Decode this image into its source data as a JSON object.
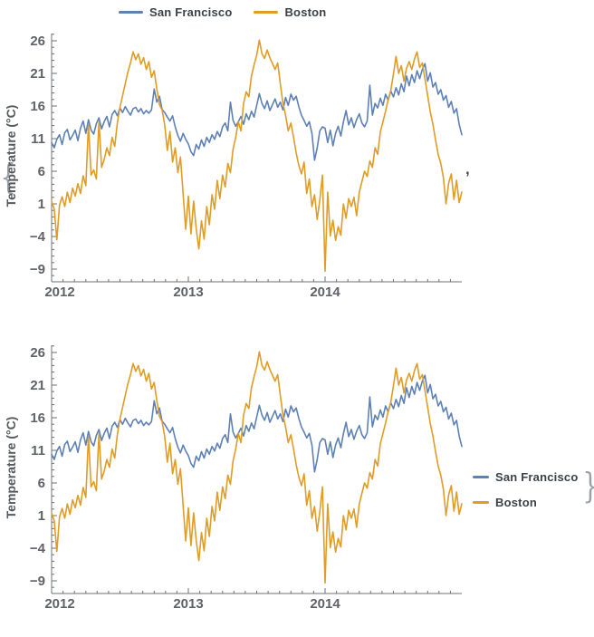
{
  "decorators": {
    "open_brace": "{",
    "separator": ",",
    "close_brace": "}"
  },
  "colors": {
    "san_francisco": "#5e81b5",
    "boston": "#e09c24",
    "axis": "#6e7174",
    "tick_text": "#5f6267",
    "legend_text": "#3b4147"
  },
  "chart_data": [
    {
      "type": "line",
      "legend_position": "top",
      "ylabel": "Temperature (°C)",
      "x_tick_labels": [
        "2012",
        "2013",
        "2014"
      ],
      "y_tick_values": [
        26,
        21,
        16,
        11,
        6,
        1,
        -4,
        -9
      ],
      "y_tick_labels": [
        "26",
        "21",
        "16",
        "11",
        "6",
        "1",
        "−4",
        "−9"
      ],
      "x_range": [
        "2012-01",
        "2014-12"
      ],
      "y_axis_range": [
        -10.9,
        27.1
      ],
      "x_unit": "week",
      "grid": false,
      "series": [
        {
          "name": "San Francisco",
          "color": "#5e81b5",
          "values": [
            10.4,
            9.6,
            10.9,
            11.6,
            10.1,
            11.9,
            12.4,
            10.8,
            11.5,
            12.3,
            10.7,
            12.6,
            13.7,
            11.8,
            13.9,
            12.3,
            11.7,
            13.3,
            14.2,
            12.5,
            13.6,
            14.4,
            12.8,
            14.7,
            15.3,
            14.5,
            15.7,
            15.0,
            15.9,
            15.2,
            14.6,
            15.6,
            15.8,
            15.1,
            15.6,
            14.8,
            15.3,
            14.9,
            15.4,
            18.6,
            16.6,
            17.5,
            15.5,
            15.0,
            14.3,
            13.7,
            14.5,
            12.8,
            11.5,
            10.6,
            11.8,
            10.9,
            10.2,
            9.0,
            8.4,
            10.1,
            9.4,
            10.8,
            9.8,
            11.2,
            10.4,
            11.6,
            10.9,
            12.1,
            11.3,
            12.8,
            13.4,
            12.2,
            16.6,
            13.8,
            12.9,
            13.6,
            14.4,
            13.2,
            14.8,
            13.9,
            15.2,
            14.3,
            16.1,
            17.9,
            16.4,
            15.6,
            16.8,
            15.3,
            16.2,
            17.1,
            15.8,
            16.6,
            15.4,
            17.3,
            16.1,
            17.8,
            16.9,
            17.5,
            15.9,
            14.6,
            13.8,
            12.9,
            13.6,
            11.8,
            7.7,
            9.6,
            12.2,
            12.8,
            12.6,
            10.4,
            12.3,
            9.9,
            11.8,
            12.9,
            11.4,
            13.6,
            15.3,
            13.1,
            14.2,
            12.7,
            13.9,
            14.8,
            13.4,
            12.8,
            13.7,
            19.2,
            14.6,
            16.4,
            15.7,
            17.2,
            16.1,
            17.8,
            16.9,
            18.3,
            17.4,
            18.8,
            17.7,
            19.4,
            18.2,
            20.6,
            19.1,
            20.8,
            19.6,
            21.4,
            20.2,
            21.6,
            22.5,
            19.8,
            21.1,
            18.9,
            19.6,
            17.8,
            18.5,
            16.9,
            17.6,
            15.8,
            16.7,
            14.9,
            15.6,
            13.2,
            11.6
          ]
        },
        {
          "name": "Boston",
          "color": "#e09c24",
          "values": [
            1.4,
            0.2,
            -4.5,
            0.8,
            2.1,
            0.6,
            2.8,
            1.2,
            3.4,
            2.2,
            4.1,
            2.6,
            5.3,
            3.8,
            13.2,
            5.4,
            6.2,
            4.8,
            13.6,
            6.6,
            7.8,
            9.6,
            8.4,
            11.2,
            9.8,
            13.4,
            15.8,
            17.6,
            19.4,
            21.2,
            22.6,
            24.3,
            23.1,
            24.0,
            22.4,
            23.4,
            21.6,
            22.8,
            20.4,
            21.4,
            18.6,
            16.2,
            15.4,
            13.1,
            9.2,
            12.1,
            7.4,
            9.6,
            5.8,
            8.2,
            2.6,
            -2.9,
            2.2,
            -3.6,
            1.4,
            -2.8,
            -5.9,
            -1.6,
            -4.4,
            0.6,
            -2.2,
            2.4,
            0.2,
            4.6,
            1.8,
            5.4,
            3.6,
            7.2,
            5.8,
            9.4,
            11.2,
            13.6,
            12.2,
            16.4,
            18.2,
            17.4,
            20.6,
            22.3,
            23.8,
            26.1,
            24.0,
            23.3,
            24.6,
            23.4,
            22.5,
            21.6,
            22.6,
            19.4,
            16.4,
            14.6,
            12.2,
            13.4,
            11.2,
            8.8,
            6.9,
            5.6,
            7.4,
            2.6,
            4.8,
            0.6,
            2.4,
            -1.4,
            1.6,
            5.4,
            -9.3,
            2.8,
            -3.9,
            -1.5,
            -4.6,
            -2.5,
            -3.8,
            1.0,
            -1.2,
            1.8,
            0.6,
            2.0,
            -0.8,
            2.8,
            4.4,
            6.0,
            5.2,
            7.6,
            6.6,
            9.6,
            8.6,
            12.0,
            13.6,
            15.2,
            17.0,
            18.4,
            20.9,
            23.6,
            21.0,
            22.2,
            19.8,
            21.8,
            22.8,
            21.6,
            23.2,
            24.3,
            21.9,
            22.6,
            20.2,
            17.6,
            15.1,
            13.2,
            10.8,
            8.6,
            7.2,
            5.0,
            1.0,
            4.2,
            5.6,
            1.7,
            4.6,
            1.2,
            2.8
          ]
        }
      ]
    },
    {
      "type": "line",
      "legend_position": "right",
      "ylabel": "Temperature (°C)",
      "x_tick_labels": [
        "2012",
        "2013",
        "2014"
      ],
      "y_tick_values": [
        26,
        21,
        16,
        11,
        6,
        1,
        -4,
        -9
      ],
      "y_tick_labels": [
        "26",
        "21",
        "16",
        "11",
        "6",
        "1",
        "−4",
        "−9"
      ],
      "x_range": [
        "2012-01",
        "2014-12"
      ],
      "y_axis_range": [
        -10.9,
        27.1
      ],
      "x_unit": "week",
      "grid": false,
      "series": [
        {
          "name": "San Francisco",
          "color": "#5e81b5",
          "values": [
            10.4,
            9.6,
            10.9,
            11.6,
            10.1,
            11.9,
            12.4,
            10.8,
            11.5,
            12.3,
            10.7,
            12.6,
            13.7,
            11.8,
            13.9,
            12.3,
            11.7,
            13.3,
            14.2,
            12.5,
            13.6,
            14.4,
            12.8,
            14.7,
            15.3,
            14.5,
            15.7,
            15.0,
            15.9,
            15.2,
            14.6,
            15.6,
            15.8,
            15.1,
            15.6,
            14.8,
            15.3,
            14.9,
            15.4,
            18.6,
            16.6,
            17.5,
            15.5,
            15.0,
            14.3,
            13.7,
            14.5,
            12.8,
            11.5,
            10.6,
            11.8,
            10.9,
            10.2,
            9.0,
            8.4,
            10.1,
            9.4,
            10.8,
            9.8,
            11.2,
            10.4,
            11.6,
            10.9,
            12.1,
            11.3,
            12.8,
            13.4,
            12.2,
            16.6,
            13.8,
            12.9,
            13.6,
            14.4,
            13.2,
            14.8,
            13.9,
            15.2,
            14.3,
            16.1,
            17.9,
            16.4,
            15.6,
            16.8,
            15.3,
            16.2,
            17.1,
            15.8,
            16.6,
            15.4,
            17.3,
            16.1,
            17.8,
            16.9,
            17.5,
            15.9,
            14.6,
            13.8,
            12.9,
            13.6,
            11.8,
            7.7,
            9.6,
            12.2,
            12.8,
            12.6,
            10.4,
            12.3,
            9.9,
            11.8,
            12.9,
            11.4,
            13.6,
            15.3,
            13.1,
            14.2,
            12.7,
            13.9,
            14.8,
            13.4,
            12.8,
            13.7,
            19.2,
            14.6,
            16.4,
            15.7,
            17.2,
            16.1,
            17.8,
            16.9,
            18.3,
            17.4,
            18.8,
            17.7,
            19.4,
            18.2,
            20.6,
            19.1,
            20.8,
            19.6,
            21.4,
            20.2,
            21.6,
            22.5,
            19.8,
            21.1,
            18.9,
            19.6,
            17.8,
            18.5,
            16.9,
            17.6,
            15.8,
            16.7,
            14.9,
            15.6,
            13.2,
            11.6
          ]
        },
        {
          "name": "Boston",
          "color": "#e09c24",
          "values": [
            1.4,
            0.2,
            -4.5,
            0.8,
            2.1,
            0.6,
            2.8,
            1.2,
            3.4,
            2.2,
            4.1,
            2.6,
            5.3,
            3.8,
            13.2,
            5.4,
            6.2,
            4.8,
            13.6,
            6.6,
            7.8,
            9.6,
            8.4,
            11.2,
            9.8,
            13.4,
            15.8,
            17.6,
            19.4,
            21.2,
            22.6,
            24.3,
            23.1,
            24.0,
            22.4,
            23.4,
            21.6,
            22.8,
            20.4,
            21.4,
            18.6,
            16.2,
            15.4,
            13.1,
            9.2,
            12.1,
            7.4,
            9.6,
            5.8,
            8.2,
            2.6,
            -2.9,
            2.2,
            -3.6,
            1.4,
            -2.8,
            -5.9,
            -1.6,
            -4.4,
            0.6,
            -2.2,
            2.4,
            0.2,
            4.6,
            1.8,
            5.4,
            3.6,
            7.2,
            5.8,
            9.4,
            11.2,
            13.6,
            12.2,
            16.4,
            18.2,
            17.4,
            20.6,
            22.3,
            23.8,
            26.1,
            24.0,
            23.3,
            24.6,
            23.4,
            22.5,
            21.6,
            22.6,
            19.4,
            16.4,
            14.6,
            12.2,
            13.4,
            11.2,
            8.8,
            6.9,
            5.6,
            7.4,
            2.6,
            4.8,
            0.6,
            2.4,
            -1.4,
            1.6,
            5.4,
            -9.3,
            2.8,
            -3.9,
            -1.5,
            -4.6,
            -2.5,
            -3.8,
            1.0,
            -1.2,
            1.8,
            0.6,
            2.0,
            -0.8,
            2.8,
            4.4,
            6.0,
            5.2,
            7.6,
            6.6,
            9.6,
            8.6,
            12.0,
            13.6,
            15.2,
            17.0,
            18.4,
            20.9,
            23.6,
            21.0,
            22.2,
            19.8,
            21.8,
            22.8,
            21.6,
            23.2,
            24.3,
            21.9,
            22.6,
            20.2,
            17.6,
            15.1,
            13.2,
            10.8,
            8.6,
            7.2,
            5.0,
            1.0,
            4.2,
            5.6,
            1.7,
            4.6,
            1.2,
            2.8
          ]
        }
      ]
    }
  ]
}
